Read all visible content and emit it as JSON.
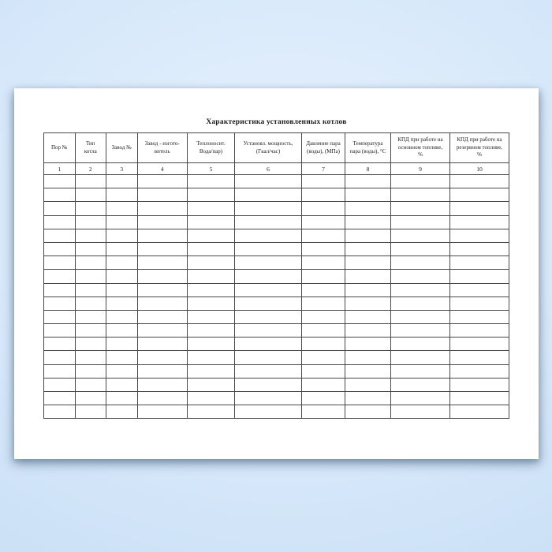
{
  "document": {
    "title": "Характеристика установленных котлов",
    "table": {
      "headers": [
        "Пор №",
        "Тип\nкотла",
        "Завод №",
        "Завод - изгото-\nвитель",
        "Теплоносит.\nВода/пар)",
        "Установл. мощность,\n(Гкал/час)",
        "Давление пара\n(воды), (МПа)",
        "Температура\nпара (воды), °С",
        "КПД при работе на\nосновном топливе,\n%",
        "КПД при работе на\nрезервном топливе,\n%"
      ],
      "column_numbers": [
        "1",
        "2",
        "3",
        "4",
        "5",
        "6",
        "7",
        "8",
        "9",
        "10"
      ],
      "empty_row_count": 18,
      "empty_cell_value": ""
    }
  },
  "colors": {
    "background_center": "#e9f3fd",
    "background_mid": "#d8e9fa",
    "background_edge": "#cbe0f6",
    "paper": "#ffffff",
    "table_border": "#474747",
    "table_border_outer": "#3a3a3a",
    "text": "#1c1c1c"
  }
}
